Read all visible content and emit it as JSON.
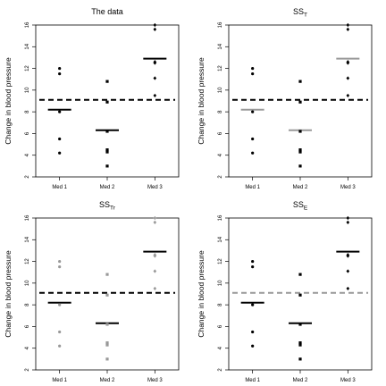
{
  "chart_data": [
    {
      "type": "scatter",
      "title": "The data",
      "title_sub": "",
      "ylabel": "Change in blood pressure",
      "categories": [
        "Med 1",
        "Med 2",
        "Med 3"
      ],
      "ylim": [
        2,
        16
      ],
      "yticks": [
        2,
        4,
        6,
        8,
        10,
        12,
        14,
        16
      ],
      "points_color": "#000000",
      "group_mean_color": "#000000",
      "grand_mean_color": "#000000",
      "grand_mean": 9.1,
      "group_means": [
        8.2,
        6.3,
        12.9
      ],
      "groups": [
        [
          4.2,
          5.5,
          8.0,
          11.5,
          12.0
        ],
        [
          3.0,
          4.3,
          4.5,
          6.2,
          8.9,
          10.8
        ],
        [
          9.5,
          11.1,
          12.5,
          12.6,
          15.6,
          16.0
        ]
      ]
    },
    {
      "type": "scatter",
      "title": "SS",
      "title_sub": "T",
      "ylabel": "Change in blood pressure",
      "categories": [
        "Med 1",
        "Med 2",
        "Med 3"
      ],
      "ylim": [
        2,
        16
      ],
      "yticks": [
        2,
        4,
        6,
        8,
        10,
        12,
        14,
        16
      ],
      "points_color": "#000000",
      "group_mean_color": "#999999",
      "grand_mean_color": "#000000",
      "grand_mean": 9.1,
      "group_means": [
        8.2,
        6.3,
        12.9
      ],
      "groups": [
        [
          4.2,
          5.5,
          8.0,
          11.5,
          12.0
        ],
        [
          3.0,
          4.3,
          4.5,
          6.2,
          8.9,
          10.8
        ],
        [
          9.5,
          11.1,
          12.5,
          12.6,
          15.6,
          16.0
        ]
      ]
    },
    {
      "type": "scatter",
      "title": "SS",
      "title_sub": "Tr",
      "ylabel": "Change in blood pressure",
      "categories": [
        "Med 1",
        "Med 2",
        "Med 3"
      ],
      "ylim": [
        2,
        16
      ],
      "yticks": [
        2,
        4,
        6,
        8,
        10,
        12,
        14,
        16
      ],
      "points_color": "#999999",
      "group_mean_color": "#000000",
      "grand_mean_color": "#000000",
      "grand_mean": 9.1,
      "group_means": [
        8.2,
        6.3,
        12.9
      ],
      "groups": [
        [
          4.2,
          5.5,
          8.0,
          11.5,
          12.0
        ],
        [
          3.0,
          4.3,
          4.5,
          6.2,
          8.9,
          10.8
        ],
        [
          9.5,
          11.1,
          12.5,
          12.6,
          15.6,
          16.0
        ]
      ]
    },
    {
      "type": "scatter",
      "title": "SS",
      "title_sub": "E",
      "ylabel": "Change in blood pressure",
      "categories": [
        "Med 1",
        "Med 2",
        "Med 3"
      ],
      "ylim": [
        2,
        16
      ],
      "yticks": [
        2,
        4,
        6,
        8,
        10,
        12,
        14,
        16
      ],
      "points_color": "#000000",
      "group_mean_color": "#000000",
      "grand_mean_color": "#999999",
      "grand_mean": 9.1,
      "group_means": [
        8.2,
        6.3,
        12.9
      ],
      "groups": [
        [
          4.2,
          5.5,
          8.0,
          11.5,
          12.0
        ],
        [
          3.0,
          4.3,
          4.5,
          6.2,
          8.9,
          10.8
        ],
        [
          9.5,
          11.1,
          12.5,
          12.6,
          15.6,
          16.0
        ]
      ]
    }
  ]
}
